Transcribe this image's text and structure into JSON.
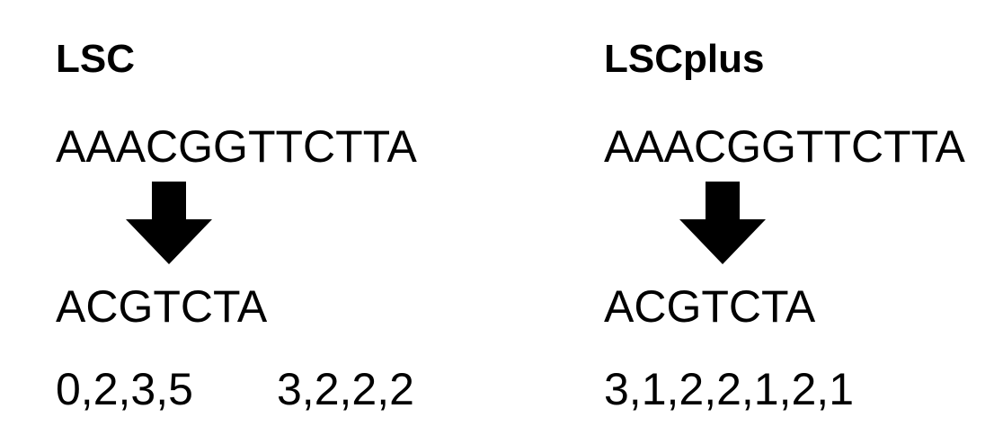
{
  "left": {
    "title": "LSC",
    "input_sequence": "AAACGGTTCTTA",
    "output_sequence": "ACGTCTA",
    "counts_a": "0,2,3,5",
    "counts_b": "3,2,2,2"
  },
  "right": {
    "title": "LSCplus",
    "input_sequence": "AAACGGTTCTTA",
    "output_sequence": "ACGTCTA",
    "counts": "3,1,2,2,1,2,1"
  },
  "arrow_color": "#000000"
}
